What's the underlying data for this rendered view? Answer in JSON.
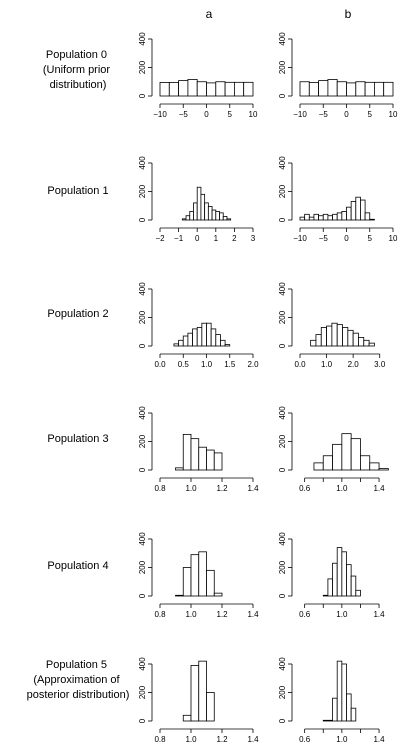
{
  "columns": [
    "a",
    "b"
  ],
  "rows": [
    [
      "Population 0",
      "(Uniform prior",
      "distribution)"
    ],
    [
      "Population 1"
    ],
    [
      "Population 2"
    ],
    [
      "Population 3"
    ],
    [
      "Population 4"
    ],
    [
      "Population 5",
      "(Approximation of",
      "posterior distribution)"
    ]
  ],
  "chart_data": {
    "type": "bar",
    "panels": [
      {
        "id": "p0a",
        "row": 0,
        "col": 0,
        "ylim": [
          0,
          400
        ],
        "yticks": [
          0,
          200,
          400
        ],
        "xlim": [
          -10,
          10
        ],
        "xticks": [
          -10,
          -5,
          0,
          5,
          10
        ],
        "xtick_labels": [
          "−10",
          "−5",
          "0",
          "5",
          "10"
        ],
        "bins": [
          [
            -10,
            -8,
            95
          ],
          [
            -8,
            -6,
            95
          ],
          [
            -6,
            -4,
            108
          ],
          [
            -4,
            -2,
            116
          ],
          [
            -2,
            0,
            100
          ],
          [
            0,
            2,
            92
          ],
          [
            2,
            4,
            100
          ],
          [
            4,
            6,
            96
          ],
          [
            6,
            8,
            96
          ],
          [
            8,
            10,
            96
          ]
        ]
      },
      {
        "id": "p0b",
        "row": 0,
        "col": 1,
        "ylim": [
          0,
          400
        ],
        "yticks": [
          0,
          200,
          400
        ],
        "xlim": [
          -10,
          10
        ],
        "xticks": [
          -10,
          -5,
          0,
          5,
          10
        ],
        "xtick_labels": [
          "−10",
          "−5",
          "0",
          "5",
          "10"
        ],
        "bins": [
          [
            -10,
            -8,
            100
          ],
          [
            -8,
            -6,
            95
          ],
          [
            -6,
            -4,
            108
          ],
          [
            -4,
            -2,
            116
          ],
          [
            -2,
            0,
            100
          ],
          [
            0,
            2,
            92
          ],
          [
            2,
            4,
            100
          ],
          [
            4,
            6,
            96
          ],
          [
            6,
            8,
            96
          ],
          [
            8,
            10,
            96
          ]
        ]
      },
      {
        "id": "p1a",
        "row": 1,
        "col": 0,
        "ylim": [
          0,
          400
        ],
        "yticks": [
          0,
          200,
          400
        ],
        "xlim": [
          -2,
          3
        ],
        "xticks": [
          -2,
          -1,
          0,
          1,
          2,
          3
        ],
        "xtick_labels": [
          "−2",
          "−1",
          "0",
          "1",
          "2",
          "3"
        ],
        "bins": [
          [
            -0.8,
            -0.6,
            8
          ],
          [
            -0.6,
            -0.4,
            30
          ],
          [
            -0.4,
            -0.2,
            60
          ],
          [
            -0.2,
            0,
            120
          ],
          [
            0,
            0.2,
            230
          ],
          [
            0.2,
            0.4,
            180
          ],
          [
            0.4,
            0.6,
            120
          ],
          [
            0.6,
            0.8,
            95
          ],
          [
            0.8,
            1.0,
            70
          ],
          [
            1.0,
            1.2,
            60
          ],
          [
            1.2,
            1.4,
            50
          ],
          [
            1.4,
            1.6,
            25
          ],
          [
            1.6,
            1.8,
            8
          ]
        ]
      },
      {
        "id": "p1b",
        "row": 1,
        "col": 1,
        "ylim": [
          0,
          400
        ],
        "yticks": [
          0,
          200,
          400
        ],
        "xlim": [
          -10,
          10
        ],
        "xticks": [
          -10,
          -5,
          0,
          5,
          10
        ],
        "xtick_labels": [
          "−10",
          "−5",
          "0",
          "5",
          "10"
        ],
        "bins": [
          [
            -10,
            -9,
            20
          ],
          [
            -9,
            -8,
            40
          ],
          [
            -8,
            -7,
            20
          ],
          [
            -7,
            -6,
            40
          ],
          [
            -6,
            -5,
            30
          ],
          [
            -5,
            -4,
            40
          ],
          [
            -4,
            -3,
            30
          ],
          [
            -3,
            -2,
            40
          ],
          [
            -2,
            -1,
            50
          ],
          [
            -1,
            0,
            60
          ],
          [
            0,
            1,
            90
          ],
          [
            1,
            2,
            130
          ],
          [
            2,
            3,
            160
          ],
          [
            3,
            4,
            140
          ],
          [
            4,
            5,
            50
          ],
          [
            5,
            6,
            5
          ]
        ]
      },
      {
        "id": "p2a",
        "row": 2,
        "col": 0,
        "ylim": [
          0,
          400
        ],
        "yticks": [
          0,
          200,
          400
        ],
        "xlim": [
          0.0,
          2.0
        ],
        "xticks": [
          0,
          0.5,
          1.0,
          1.5,
          2.0
        ],
        "xtick_labels": [
          "0.0",
          "0.5",
          "1.0",
          "1.5",
          "2.0"
        ],
        "bins": [
          [
            0.3,
            0.4,
            15
          ],
          [
            0.4,
            0.5,
            40
          ],
          [
            0.5,
            0.6,
            70
          ],
          [
            0.6,
            0.7,
            90
          ],
          [
            0.7,
            0.8,
            120
          ],
          [
            0.8,
            0.9,
            130
          ],
          [
            0.9,
            1.0,
            160
          ],
          [
            1.0,
            1.1,
            160
          ],
          [
            1.1,
            1.2,
            120
          ],
          [
            1.2,
            1.3,
            80
          ],
          [
            1.3,
            1.4,
            40
          ],
          [
            1.4,
            1.5,
            10
          ]
        ]
      },
      {
        "id": "p2b",
        "row": 2,
        "col": 1,
        "ylim": [
          0,
          400
        ],
        "yticks": [
          0,
          200,
          400
        ],
        "xlim": [
          0.0,
          3.5
        ],
        "xticks": [
          0,
          1,
          2,
          3
        ],
        "xtick_labels": [
          "0.0",
          "1.0",
          "2.0",
          "3.0"
        ],
        "bins": [
          [
            0.4,
            0.6,
            40
          ],
          [
            0.6,
            0.8,
            80
          ],
          [
            0.8,
            1.0,
            130
          ],
          [
            1.0,
            1.2,
            140
          ],
          [
            1.2,
            1.4,
            160
          ],
          [
            1.4,
            1.6,
            150
          ],
          [
            1.6,
            1.8,
            130
          ],
          [
            1.8,
            2.0,
            110
          ],
          [
            2.0,
            2.2,
            90
          ],
          [
            2.2,
            2.4,
            60
          ],
          [
            2.4,
            2.6,
            40
          ],
          [
            2.6,
            2.8,
            20
          ]
        ]
      },
      {
        "id": "p3a",
        "row": 3,
        "col": 0,
        "ylim": [
          0,
          400
        ],
        "yticks": [
          0,
          200,
          400
        ],
        "xlim": [
          0.8,
          1.4
        ],
        "xticks": [
          0.8,
          1.0,
          1.2,
          1.4
        ],
        "xtick_labels": [
          "0.8",
          "1.0",
          "1.2",
          "1.4"
        ],
        "bins": [
          [
            0.9,
            0.95,
            15
          ],
          [
            0.95,
            1.0,
            250
          ],
          [
            1.0,
            1.05,
            220
          ],
          [
            1.05,
            1.1,
            160
          ],
          [
            1.1,
            1.15,
            140
          ],
          [
            1.15,
            1.2,
            120
          ]
        ]
      },
      {
        "id": "p3b",
        "row": 3,
        "col": 1,
        "ylim": [
          0,
          400
        ],
        "yticks": [
          0,
          200,
          400
        ],
        "xlim": [
          0.55,
          1.55
        ],
        "xticks": [
          0.6,
          0.8,
          1.0,
          1.2,
          1.4
        ],
        "xtick_labels": [
          "0.6",
          "",
          "1.0",
          "",
          "1.4"
        ],
        "bins": [
          [
            0.7,
            0.8,
            50
          ],
          [
            0.8,
            0.9,
            100
          ],
          [
            0.9,
            1.0,
            180
          ],
          [
            1.0,
            1.1,
            255
          ],
          [
            1.1,
            1.2,
            220
          ],
          [
            1.2,
            1.3,
            100
          ],
          [
            1.3,
            1.4,
            50
          ],
          [
            1.4,
            1.5,
            10
          ]
        ]
      },
      {
        "id": "p4a",
        "row": 4,
        "col": 0,
        "ylim": [
          0,
          400
        ],
        "yticks": [
          0,
          200,
          400
        ],
        "xlim": [
          0.8,
          1.4
        ],
        "xticks": [
          0.8,
          1.0,
          1.2,
          1.4
        ],
        "xtick_labels": [
          "0.8",
          "1.0",
          "1.2",
          "1.4"
        ],
        "bins": [
          [
            0.9,
            0.95,
            5
          ],
          [
            0.95,
            1.0,
            200
          ],
          [
            1.0,
            1.05,
            290
          ],
          [
            1.05,
            1.1,
            310
          ],
          [
            1.1,
            1.15,
            180
          ],
          [
            1.15,
            1.2,
            20
          ]
        ]
      },
      {
        "id": "p4b",
        "row": 4,
        "col": 1,
        "ylim": [
          0,
          400
        ],
        "yticks": [
          0,
          200,
          400
        ],
        "xlim": [
          0.55,
          1.55
        ],
        "xticks": [
          0.6,
          0.8,
          1.0,
          1.2,
          1.4
        ],
        "xtick_labels": [
          "0.6",
          "",
          "1.0",
          "",
          "1.4"
        ],
        "bins": [
          [
            0.8,
            0.85,
            5
          ],
          [
            0.85,
            0.9,
            120
          ],
          [
            0.9,
            0.95,
            230
          ],
          [
            0.95,
            1.0,
            340
          ],
          [
            1.0,
            1.05,
            310
          ],
          [
            1.05,
            1.1,
            220
          ],
          [
            1.1,
            1.15,
            140
          ],
          [
            1.15,
            1.2,
            40
          ]
        ]
      },
      {
        "id": "p5a",
        "row": 5,
        "col": 0,
        "ylim": [
          0,
          400
        ],
        "yticks": [
          0,
          200,
          400
        ],
        "xlim": [
          0.8,
          1.4
        ],
        "xticks": [
          0.8,
          1.0,
          1.2,
          1.4
        ],
        "xtick_labels": [
          "0.8",
          "1.0",
          "1.2",
          "1.4"
        ],
        "bins": [
          [
            0.95,
            1.0,
            40
          ],
          [
            1.0,
            1.05,
            390
          ],
          [
            1.05,
            1.1,
            420
          ],
          [
            1.1,
            1.15,
            200
          ]
        ]
      },
      {
        "id": "p5b",
        "row": 5,
        "col": 1,
        "ylim": [
          0,
          400
        ],
        "yticks": [
          0,
          200,
          400
        ],
        "xlim": [
          0.55,
          1.55
        ],
        "xticks": [
          0.6,
          0.8,
          1.0,
          1.2,
          1.4
        ],
        "xtick_labels": [
          "0.6",
          "",
          "1.0",
          "",
          "1.4"
        ],
        "bins": [
          [
            0.8,
            0.9,
            5
          ],
          [
            0.9,
            0.95,
            160
          ],
          [
            0.95,
            1.0,
            420
          ],
          [
            1.0,
            1.05,
            400
          ],
          [
            1.05,
            1.1,
            190
          ],
          [
            1.1,
            1.15,
            90
          ]
        ]
      }
    ]
  }
}
